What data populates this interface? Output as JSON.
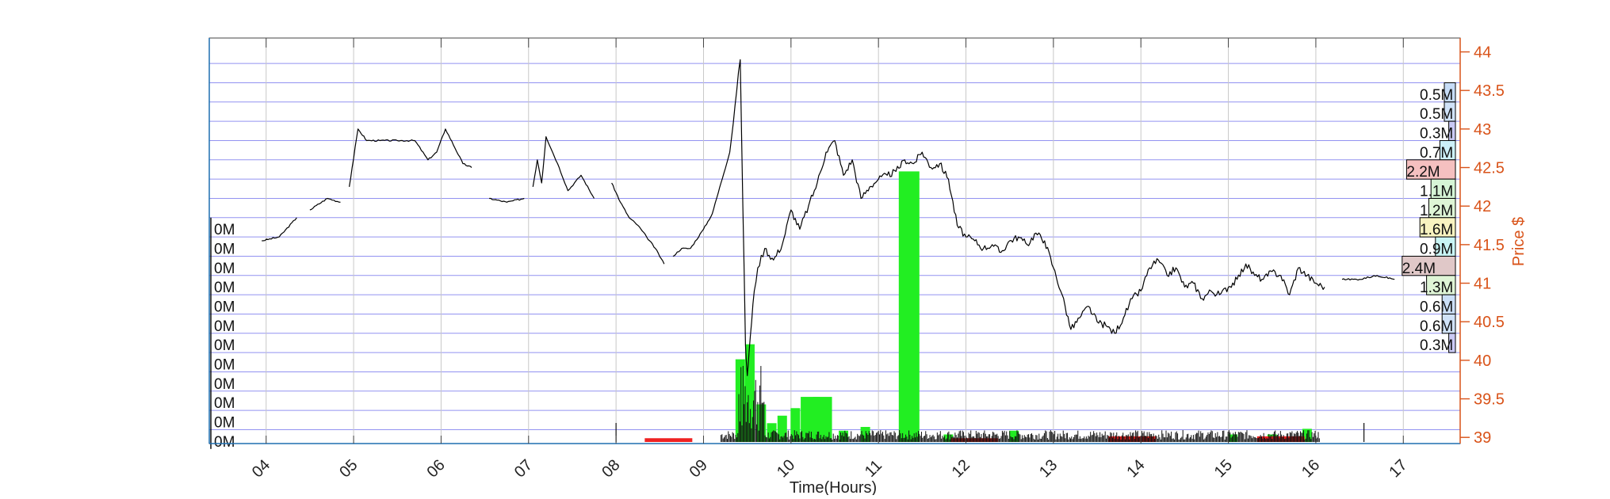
{
  "chart_data": {
    "type": "line",
    "title": "",
    "xlabel": "Time(Hours)",
    "ylabel": "Price $",
    "xlim": [
      3.35,
      17.65
    ],
    "ylim": [
      38.92,
      44.18
    ],
    "x_ticks": [
      4,
      5,
      6,
      7,
      8,
      9,
      10,
      11,
      12,
      13,
      14,
      15,
      16,
      17
    ],
    "x_tick_labels": [
      "04",
      "05",
      "06",
      "07",
      "08",
      "09",
      "10",
      "11",
      "12",
      "13",
      "14",
      "15",
      "16",
      "17"
    ],
    "y_ticks": [
      39,
      39.5,
      40,
      40.5,
      41,
      41.5,
      42,
      42.5,
      43,
      43.5,
      44
    ],
    "y_tick_labels": [
      "39",
      "39.5",
      "40",
      "40.5",
      "41",
      "41.5",
      "42",
      "42.5",
      "43",
      "43.5",
      "44"
    ],
    "grid_levels": [
      39.1,
      39.35,
      39.6,
      39.85,
      40.1,
      40.35,
      40.6,
      40.85,
      41.1,
      41.35,
      41.6,
      41.85,
      42.1,
      42.35,
      42.6,
      42.85,
      43.1,
      43.35,
      43.6,
      43.85
    ],
    "price_series": {
      "name": "Price",
      "x": [
        3.95,
        4.15,
        4.35,
        4.5,
        4.7,
        4.85,
        4.95,
        5.05,
        5.15,
        5.3,
        5.5,
        5.7,
        5.85,
        5.95,
        6.05,
        6.25,
        6.35,
        6.55,
        6.75,
        6.95,
        7.05,
        7.1,
        7.15,
        7.2,
        7.35,
        7.45,
        7.6,
        7.75,
        7.95,
        8.05,
        8.15,
        8.25,
        8.35,
        8.45,
        8.55,
        8.65,
        8.75,
        8.85,
        9.0,
        9.1,
        9.2,
        9.3,
        9.38,
        9.42,
        9.45,
        9.48,
        9.5,
        9.52,
        9.55,
        9.58,
        9.62,
        9.7,
        9.8,
        9.9,
        10.0,
        10.1,
        10.2,
        10.3,
        10.4,
        10.5,
        10.6,
        10.7,
        10.8,
        10.9,
        11.0,
        11.1,
        11.2,
        11.3,
        11.4,
        11.5,
        11.6,
        11.7,
        11.8,
        11.9,
        12.0,
        12.1,
        12.2,
        12.3,
        12.4,
        12.5,
        12.6,
        12.7,
        12.8,
        12.9,
        13.0,
        13.1,
        13.2,
        13.3,
        13.4,
        13.5,
        13.6,
        13.7,
        13.8,
        13.9,
        14.0,
        14.1,
        14.2,
        14.3,
        14.4,
        14.5,
        14.6,
        14.7,
        14.8,
        14.9,
        15.0,
        15.1,
        15.2,
        15.3,
        15.4,
        15.5,
        15.6,
        15.7,
        15.8,
        15.9,
        16.0,
        16.1,
        16.3,
        16.5,
        16.7,
        16.9
      ],
      "y": [
        41.55,
        41.6,
        41.85,
        41.95,
        42.1,
        42.05,
        42.25,
        43.0,
        42.85,
        42.85,
        42.85,
        42.85,
        42.6,
        42.7,
        43.0,
        42.55,
        42.5,
        42.1,
        42.05,
        42.1,
        42.25,
        42.6,
        42.3,
        42.9,
        42.5,
        42.2,
        42.4,
        42.1,
        42.3,
        42.05,
        41.85,
        41.75,
        41.6,
        41.45,
        41.25,
        41.35,
        41.45,
        41.45,
        41.7,
        41.9,
        42.3,
        42.7,
        43.5,
        43.9,
        42.0,
        40.2,
        39.8,
        40.1,
        40.5,
        40.9,
        41.2,
        41.45,
        41.3,
        41.5,
        41.95,
        41.7,
        42.0,
        42.3,
        42.7,
        42.85,
        42.4,
        42.6,
        42.1,
        42.25,
        42.35,
        42.4,
        42.45,
        42.6,
        42.55,
        42.7,
        42.5,
        42.55,
        42.35,
        41.75,
        41.6,
        41.55,
        41.45,
        41.5,
        41.4,
        41.55,
        41.6,
        41.5,
        41.65,
        41.55,
        41.2,
        40.85,
        40.4,
        40.55,
        40.7,
        40.5,
        40.45,
        40.35,
        40.55,
        40.8,
        40.9,
        41.2,
        41.3,
        41.1,
        41.2,
        40.95,
        41.0,
        40.8,
        40.9,
        40.85,
        40.95,
        41.05,
        41.25,
        41.1,
        41.05,
        41.15,
        41.1,
        40.85,
        41.2,
        41.1,
        41.0,
        40.95,
        41.05,
        41.05,
        41.1,
        41.05
      ],
      "gap_after_x": [
        4.35,
        4.85,
        6.35,
        6.95,
        7.75,
        8.55,
        16.1
      ]
    },
    "volume_bars": {
      "name": "Volume (normalized 0-1)",
      "up": [
        {
          "x": 9.42,
          "v": 0.22
        },
        {
          "x": 9.53,
          "v": 0.26
        },
        {
          "x": 9.66,
          "v": 0.1
        },
        {
          "x": 9.78,
          "v": 0.05
        },
        {
          "x": 9.9,
          "v": 0.07
        },
        {
          "x": 10.05,
          "v": 0.09
        },
        {
          "x": 10.22,
          "v": 0.12
        },
        {
          "x": 10.36,
          "v": 0.12
        },
        {
          "x": 10.6,
          "v": 0.03
        },
        {
          "x": 10.85,
          "v": 0.04
        },
        {
          "x": 11.35,
          "v": 0.72
        },
        {
          "x": 11.8,
          "v": 0.02
        },
        {
          "x": 12.55,
          "v": 0.03
        },
        {
          "x": 14.1,
          "v": 0.015
        },
        {
          "x": 15.05,
          "v": 0.02
        },
        {
          "x": 15.5,
          "v": 0.02
        },
        {
          "x": 15.9,
          "v": 0.035
        }
      ],
      "down": [
        {
          "x": 8.6,
          "v": 0.01
        },
        {
          "x": 12.1,
          "v": 0.01
        },
        {
          "x": 13.9,
          "v": 0.015
        },
        {
          "x": 15.6,
          "v": 0.015
        }
      ]
    },
    "left_profile_labels": [
      "0M",
      "0M",
      "0M",
      "0M",
      "0M",
      "0M",
      "0M",
      "0M",
      "0M",
      "0M",
      "0M",
      "0M"
    ],
    "right_profile": [
      {
        "label": "0.5M",
        "value": 0.5,
        "color": "#c6dcf7",
        "highlight": false
      },
      {
        "label": "0.5M",
        "value": 0.5,
        "color": "#cfe2f8",
        "highlight": false
      },
      {
        "label": "0.3M",
        "value": 0.3,
        "color": "#c9c9f5",
        "highlight": false
      },
      {
        "label": "0.7M",
        "value": 0.7,
        "color": "#ccf0f8",
        "highlight": false
      },
      {
        "label": "2.2M",
        "value": 2.2,
        "color": "#f5c0c0",
        "highlight": true
      },
      {
        "label": "1.1M",
        "value": 1.1,
        "color": "#d6f5d6",
        "highlight": false
      },
      {
        "label": "1.2M",
        "value": 1.2,
        "color": "#def5d6",
        "highlight": false
      },
      {
        "label": "1.6M",
        "value": 1.6,
        "color": "#f8f3c0",
        "highlight": false
      },
      {
        "label": "0.9M",
        "value": 0.9,
        "color": "#c9f5f5",
        "highlight": false
      },
      {
        "label": "2.4M",
        "value": 2.4,
        "color": "#e0c8c8",
        "highlight": true
      },
      {
        "label": "1.3M",
        "value": 1.3,
        "color": "#dff5d6",
        "highlight": false
      },
      {
        "label": "0.6M",
        "value": 0.6,
        "color": "#cbdff7",
        "highlight": false
      },
      {
        "label": "0.6M",
        "value": 0.6,
        "color": "#d0e2f8",
        "highlight": false
      },
      {
        "label": "0.3M",
        "value": 0.3,
        "color": "#cacaf5",
        "highlight": false
      }
    ],
    "colors": {
      "axis_right": "#d95319",
      "grid": "#7777ee",
      "price": "#000000",
      "vol_up": "#22ee22",
      "vol_down": "#ee2222",
      "frame_left": "#1f6fb0"
    }
  }
}
